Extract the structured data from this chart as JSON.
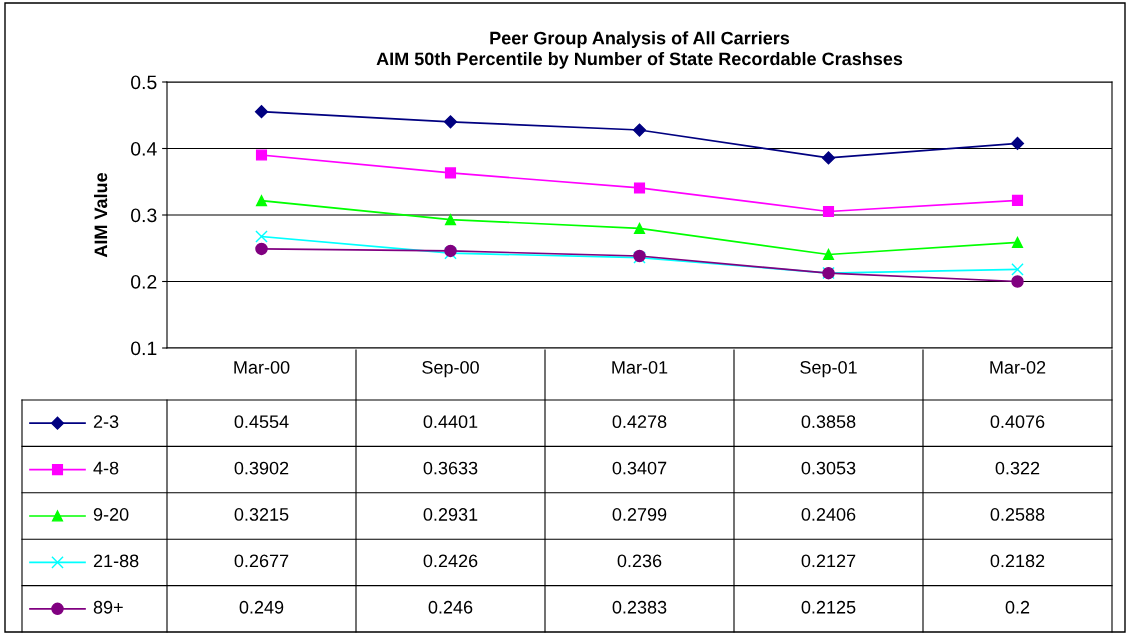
{
  "chart_data": {
    "type": "line",
    "title": "Peer Group Analysis of All Carriers\nAIM 50th Percentile by Number of State Recordable Crashses",
    "ylabel": "AIM Value",
    "categories": [
      "Mar-00",
      "Sep-00",
      "Mar-01",
      "Sep-01",
      "Mar-02"
    ],
    "series": [
      {
        "name": "2-3",
        "color": "#000080",
        "marker": "diamond",
        "values": [
          0.4554,
          0.4401,
          0.4278,
          0.3858,
          0.4076
        ]
      },
      {
        "name": "4-8",
        "color": "#ff00ff",
        "marker": "square",
        "values": [
          0.3902,
          0.3633,
          0.3407,
          0.3053,
          0.322
        ]
      },
      {
        "name": "9-20",
        "color": "#00ff00",
        "marker": "triangle",
        "values": [
          0.3215,
          0.2931,
          0.2799,
          0.2406,
          0.2588
        ]
      },
      {
        "name": "21-88",
        "color": "#00ffff",
        "marker": "cross",
        "values": [
          0.2677,
          0.2426,
          0.236,
          0.2127,
          0.2182
        ]
      },
      {
        "name": "89+",
        "color": "#800080",
        "marker": "circle",
        "values": [
          0.249,
          0.246,
          0.2383,
          0.2125,
          0.2
        ]
      }
    ],
    "ylim": [
      0.1,
      0.5
    ],
    "yticks": [
      0.1,
      0.2,
      0.3,
      0.4,
      0.5
    ],
    "grid": "y",
    "data_labels": true,
    "legend": "bottom left"
  }
}
